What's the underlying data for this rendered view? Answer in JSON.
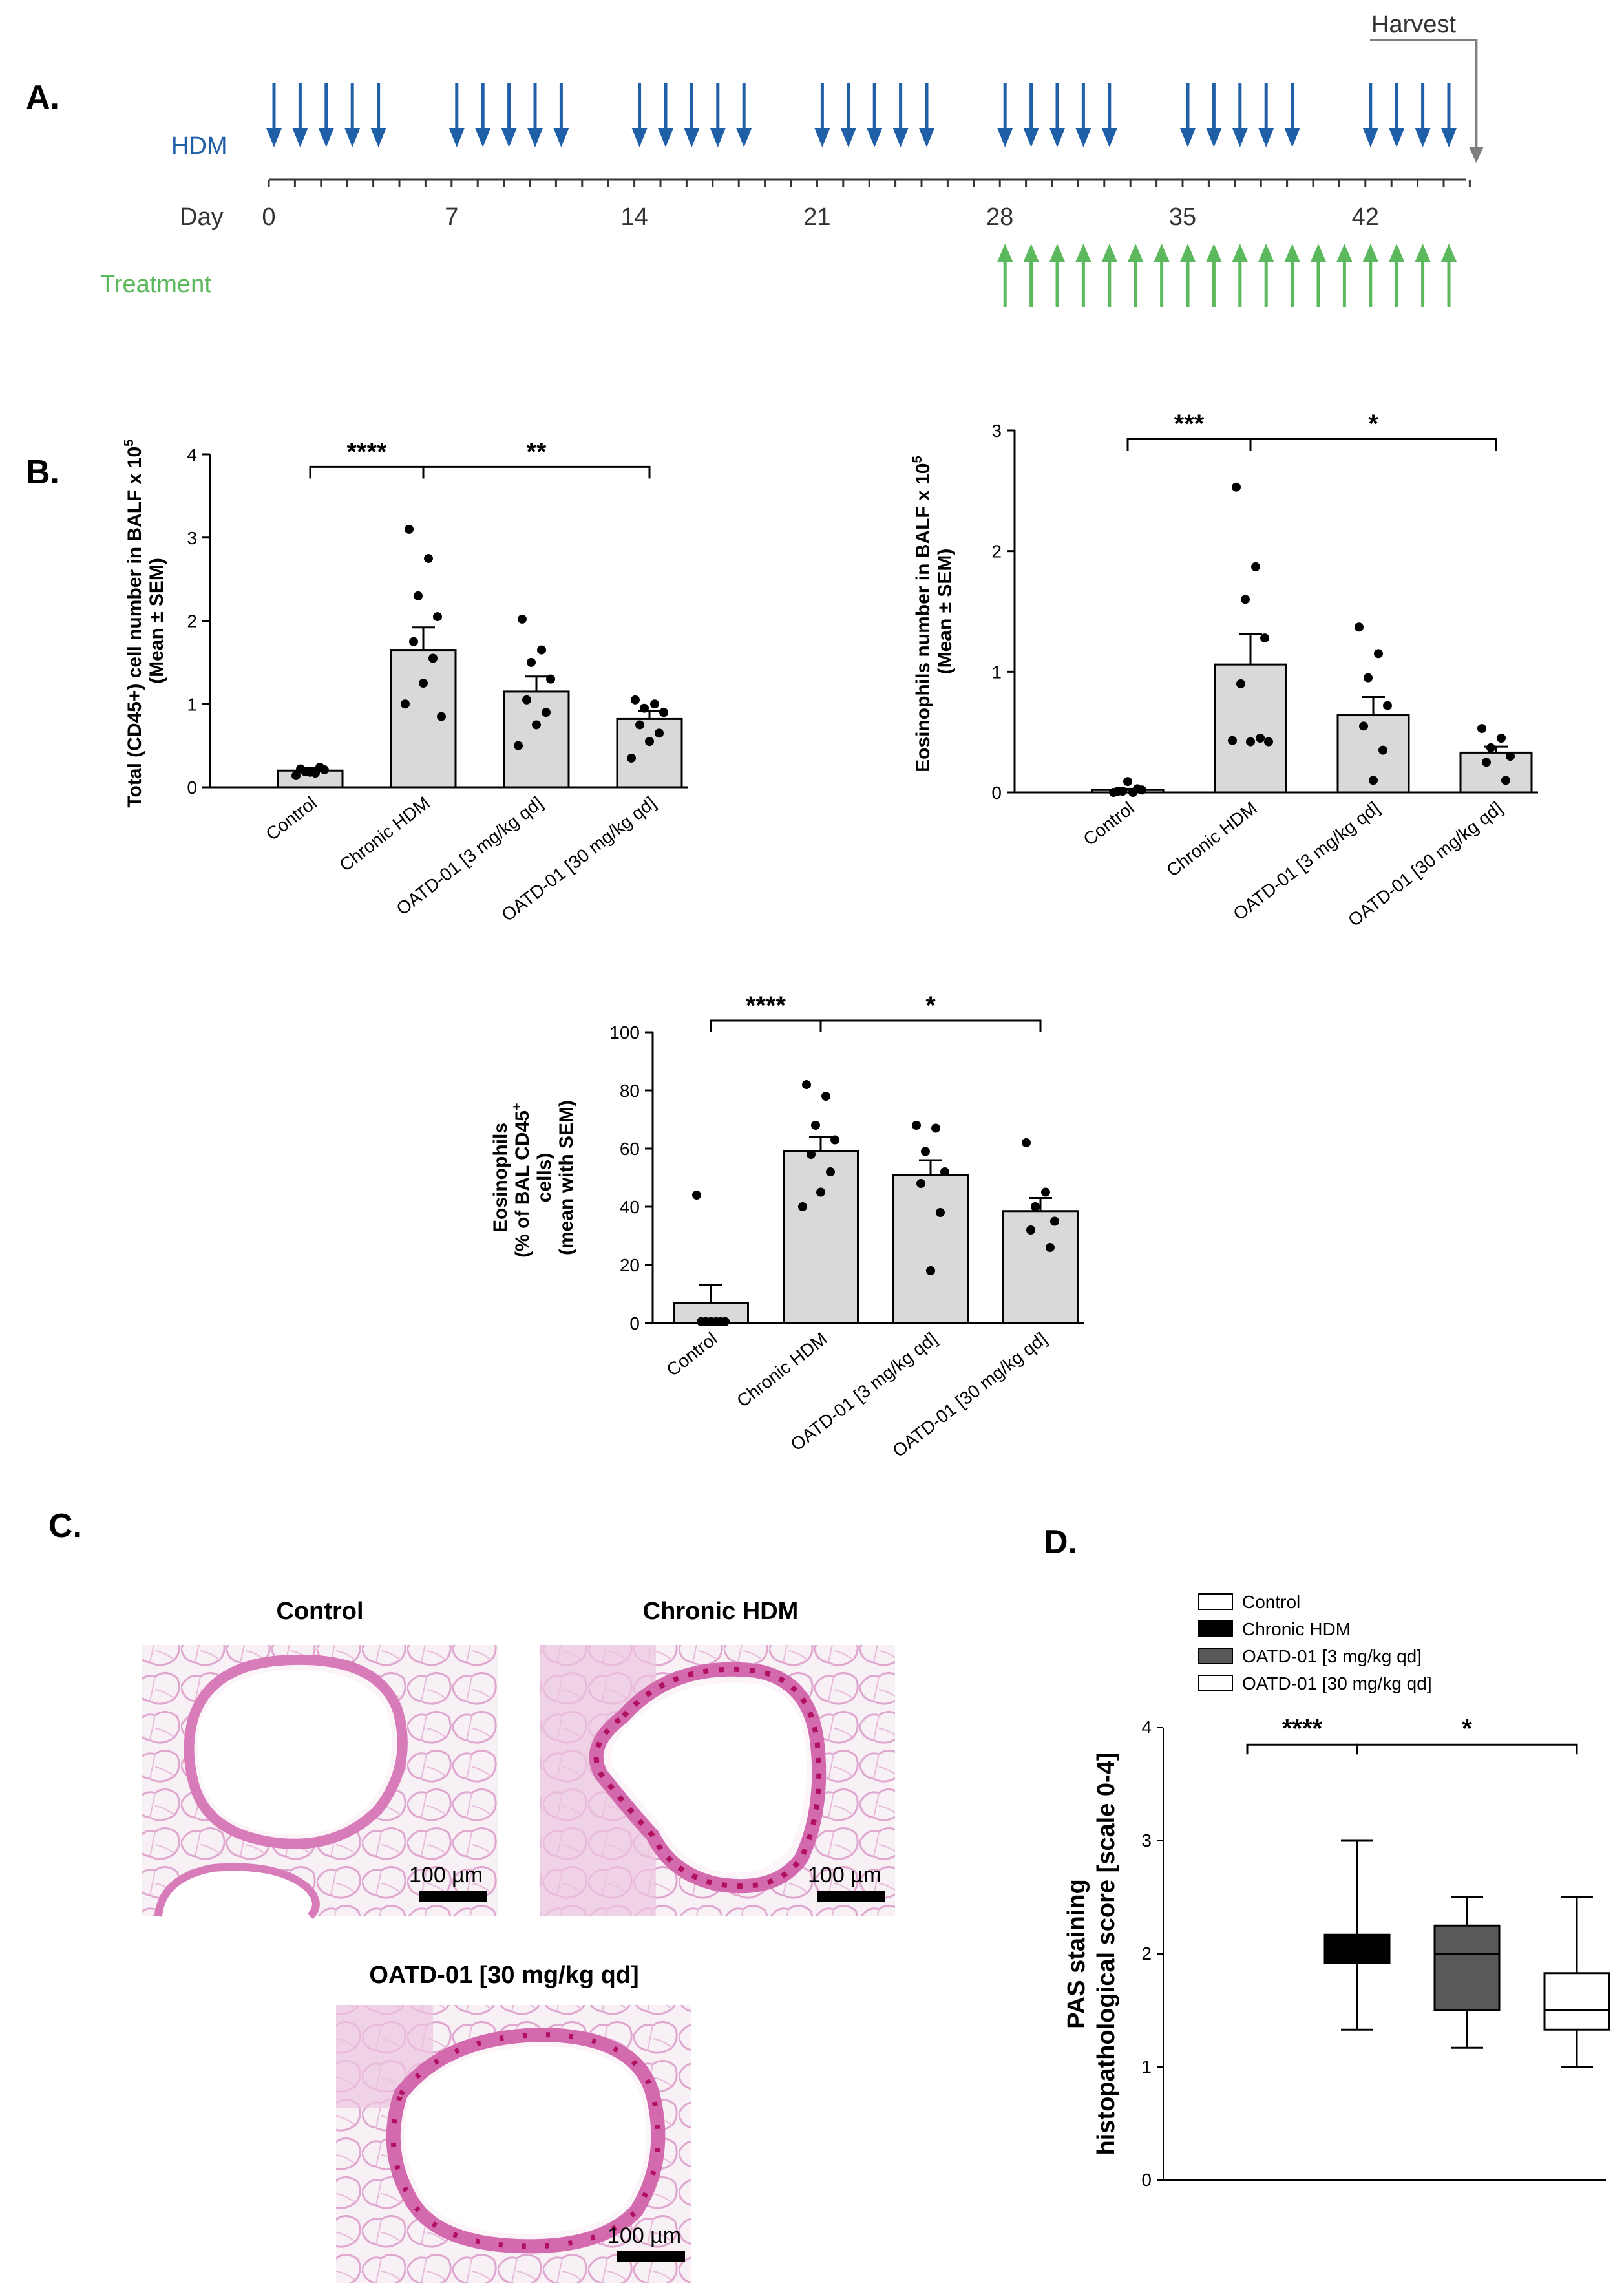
{
  "panels": {
    "A": "A.",
    "B": "B.",
    "C": "C.",
    "D": "D."
  },
  "timeline": {
    "hdm_label": "HDM",
    "day_label": "Day",
    "treatment_label": "Treatment",
    "harvest_label": "Harvest",
    "day_ticks": [
      "0",
      "7",
      "14",
      "21",
      "28",
      "35",
      "42"
    ],
    "hdm_days": [
      0,
      1,
      2,
      3,
      4,
      7,
      8,
      9,
      10,
      11,
      14,
      15,
      16,
      17,
      18,
      21,
      22,
      23,
      24,
      25,
      28,
      29,
      30,
      31,
      32,
      35,
      36,
      37,
      38,
      39,
      42,
      43,
      44,
      45
    ],
    "treatment_days": [
      28,
      29,
      30,
      31,
      32,
      33,
      34,
      35,
      36,
      37,
      38,
      39,
      40,
      41,
      42,
      43,
      44,
      45
    ],
    "harvest_day": 46,
    "colors": {
      "hdm": "#1f5fa8",
      "treatment": "#5cb85c",
      "harvest": "#7f7f7f"
    }
  },
  "histology": {
    "titles": [
      "Control",
      "Chronic HDM",
      "OATD-01 [30 mg/kg qd]"
    ],
    "scale_bar": "100 µm"
  },
  "chart_data": [
    {
      "type": "bar",
      "panel": "B-total",
      "ylabel_lines": [
        "Total (CD45+) cell number in BALF x 10",
        "(Mean ± SEM)"
      ],
      "ylabel_sup": "5",
      "categories": [
        "Control",
        "Chronic HDM",
        "OATD-01 [3 mg/kg qd]",
        "OATD-01 [30 mg/kg qd]"
      ],
      "ylim": [
        0,
        4
      ],
      "yticks": [
        "0",
        "1",
        "2",
        "3",
        "4"
      ],
      "values": [
        0.2,
        1.65,
        1.15,
        0.82
      ],
      "sem": [
        0.03,
        0.27,
        0.18,
        0.1
      ],
      "points": [
        [
          0.14,
          0.17,
          0.19,
          0.21,
          0.22,
          0.24,
          0.18
        ],
        [
          3.1,
          2.75,
          2.3,
          2.05,
          1.75,
          1.55,
          1.25,
          1.0,
          0.85
        ],
        [
          2.02,
          1.65,
          1.5,
          1.3,
          1.05,
          0.9,
          0.75,
          0.5
        ],
        [
          1.05,
          1.0,
          0.95,
          0.9,
          0.75,
          0.65,
          0.55,
          0.35
        ]
      ],
      "sig": [
        {
          "from": 0,
          "to": 1,
          "label": "****",
          "y": 3.85
        },
        {
          "from": 1,
          "to": 3,
          "label": "**",
          "y": 3.85
        }
      ],
      "fill": "#d9d9d9"
    },
    {
      "type": "bar",
      "panel": "B-eos",
      "ylabel_lines": [
        "Eosinophils number in BALF x 10",
        "(Mean ± SEM)"
      ],
      "ylabel_sup": "5",
      "categories": [
        "Control",
        "Chronic HDM",
        "OATD-01 [3 mg/kg qd]",
        "OATD-01 [30 mg/kg qd]"
      ],
      "ylim": [
        0,
        3
      ],
      "yticks": [
        "0",
        "1",
        "2",
        "3"
      ],
      "values": [
        0.02,
        1.06,
        0.64,
        0.33
      ],
      "sem": [
        0.01,
        0.25,
        0.15,
        0.05
      ],
      "points": [
        [
          0.0,
          0.0,
          0.01,
          0.02,
          0.01,
          0.03,
          0.09
        ],
        [
          2.53,
          1.87,
          1.6,
          1.28,
          0.9,
          0.45,
          0.42,
          0.43,
          0.42
        ],
        [
          1.37,
          1.15,
          0.95,
          0.72,
          0.55,
          0.35,
          0.1
        ],
        [
          0.53,
          0.45,
          0.37,
          0.3,
          0.25,
          0.1
        ]
      ],
      "sig": [
        {
          "from": 0,
          "to": 1,
          "label": "***",
          "y": 2.93
        },
        {
          "from": 1,
          "to": 3,
          "label": "*",
          "y": 2.93
        }
      ],
      "fill": "#d9d9d9"
    },
    {
      "type": "bar",
      "panel": "B-pct",
      "ylabel_lines": [
        "Eosinophils",
        "(% of BAL CD45",
        "cells)",
        "(mean with SEM)"
      ],
      "ylabel_sup": "+",
      "categories": [
        "Control",
        "Chronic HDM",
        "OATD-01 [3 mg/kg qd]",
        "OATD-01 [30 mg/kg qd]"
      ],
      "ylim": [
        0,
        100
      ],
      "yticks": [
        "0",
        "20",
        "40",
        "60",
        "80",
        "100"
      ],
      "values": [
        7,
        59,
        51,
        38.5
      ],
      "sem": [
        6,
        5,
        5,
        4.5
      ],
      "points": [
        [
          44,
          0.5,
          0.5,
          0.5,
          0.5,
          0.5,
          0.5
        ],
        [
          82,
          78,
          68,
          63,
          58,
          52,
          45,
          40
        ],
        [
          68,
          67,
          59,
          52,
          48,
          38,
          18
        ],
        [
          62,
          45,
          40,
          35,
          32,
          26
        ]
      ],
      "sig": [
        {
          "from": 0,
          "to": 1,
          "label": "****",
          "y": 104
        },
        {
          "from": 1,
          "to": 3,
          "label": "*",
          "y": 104
        }
      ],
      "fill": "#d9d9d9"
    },
    {
      "type": "box",
      "panel": "D",
      "ylabel_lines": [
        "PAS staining",
        "histopathological score [scale 0-4]"
      ],
      "categories": [
        "Control",
        "Chronic HDM",
        "OATD-01 [3 mg/kg qd]",
        "OATD-01 [30 mg/kg qd]"
      ],
      "ylim": [
        0,
        4
      ],
      "yticks": [
        "0",
        "1",
        "2",
        "3",
        "4"
      ],
      "boxes": [
        null,
        {
          "min": 1.33,
          "q1": 1.92,
          "median": 2.0,
          "q3": 2.17,
          "max": 3.0
        },
        {
          "min": 1.17,
          "q1": 1.5,
          "median": 2.0,
          "q3": 2.25,
          "max": 2.5
        },
        {
          "min": 1.0,
          "q1": 1.33,
          "median": 1.5,
          "q3": 1.83,
          "max": 2.5
        }
      ],
      "box_colors": [
        "#ffffff",
        "#000000",
        "#595959",
        "#ffffff"
      ],
      "legend": [
        "Control",
        "Chronic HDM",
        "OATD-01 [3 mg/kg qd]",
        "OATD-01 [30 mg/kg qd]"
      ],
      "legend_colors": [
        "#ffffff",
        "#000000",
        "#595959",
        "#ffffff"
      ],
      "sig": [
        {
          "from": 0,
          "to": 1,
          "label": "****",
          "y": 3.85
        },
        {
          "from": 1,
          "to": 3,
          "label": "*",
          "y": 3.85
        }
      ]
    }
  ]
}
